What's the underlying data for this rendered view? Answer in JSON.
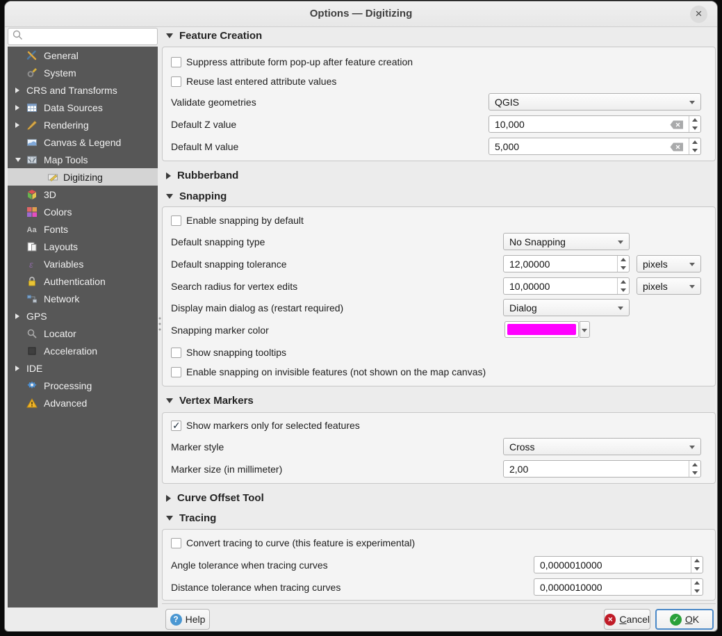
{
  "window": {
    "title": "Options — Digitizing",
    "close_glyph": "×"
  },
  "sidebar": {
    "search_placeholder": "",
    "items": [
      {
        "label": "General",
        "icon": "general-icon",
        "indent": 1
      },
      {
        "label": "System",
        "icon": "system-icon",
        "indent": 1
      },
      {
        "label": "CRS and Transforms",
        "icon": null,
        "indent": 0,
        "arrow": "right"
      },
      {
        "label": "Data Sources",
        "icon": "data-sources-icon",
        "indent": 0,
        "arrow": "right"
      },
      {
        "label": "Rendering",
        "icon": "rendering-icon",
        "indent": 0,
        "arrow": "right"
      },
      {
        "label": "Canvas & Legend",
        "icon": "canvas-legend-icon",
        "indent": 1
      },
      {
        "label": "Map Tools",
        "icon": "map-tools-icon",
        "indent": 0,
        "arrow": "down"
      },
      {
        "label": "Digitizing",
        "icon": "digitizing-icon",
        "indent": 2,
        "selected": true
      },
      {
        "label": "3D",
        "icon": "cube-3d-icon",
        "indent": 1
      },
      {
        "label": "Colors",
        "icon": "colors-icon",
        "indent": 1
      },
      {
        "label": "Fonts",
        "icon": "fonts-icon",
        "indent": 1
      },
      {
        "label": "Layouts",
        "icon": "layouts-icon",
        "indent": 1
      },
      {
        "label": "Variables",
        "icon": "variables-icon",
        "indent": 1
      },
      {
        "label": "Authentication",
        "icon": "authentication-icon",
        "indent": 1
      },
      {
        "label": "Network",
        "icon": "network-icon",
        "indent": 1
      },
      {
        "label": "GPS",
        "icon": null,
        "indent": 0,
        "arrow": "right"
      },
      {
        "label": "Locator",
        "icon": "locator-icon",
        "indent": 1
      },
      {
        "label": "Acceleration",
        "icon": "acceleration-icon",
        "indent": 1
      },
      {
        "label": "IDE",
        "icon": null,
        "indent": 0,
        "arrow": "right"
      },
      {
        "label": "Processing",
        "icon": "processing-icon",
        "indent": 1
      },
      {
        "label": "Advanced",
        "icon": "advanced-icon",
        "indent": 1
      }
    ]
  },
  "sections": {
    "feature_creation": {
      "title": "Feature Creation",
      "suppress_label": "Suppress attribute form pop-up after feature creation",
      "suppress_checked": false,
      "reuse_label": "Reuse last entered attribute values",
      "reuse_checked": false,
      "validate_label": "Validate geometries",
      "validate_value": "QGIS",
      "default_z_label": "Default Z value",
      "default_z_value": "10,000",
      "default_m_label": "Default M value",
      "default_m_value": "5,000"
    },
    "rubberband": {
      "title": "Rubberband"
    },
    "snapping": {
      "title": "Snapping",
      "enable_label": "Enable snapping by default",
      "enable_checked": false,
      "type_label": "Default snapping type",
      "type_value": "No Snapping",
      "tolerance_label": "Default snapping tolerance",
      "tolerance_value": "12,00000",
      "tolerance_unit": "pixels",
      "radius_label": "Search radius for vertex edits",
      "radius_value": "10,00000",
      "radius_unit": "pixels",
      "dialog_label": "Display main dialog as (restart required)",
      "dialog_value": "Dialog",
      "marker_color_label": "Snapping marker color",
      "marker_color": "#ff00ff",
      "tooltips_label": "Show snapping tooltips",
      "tooltips_checked": false,
      "invisible_label": "Enable snapping on invisible features (not shown on the map canvas)",
      "invisible_checked": false
    },
    "vertex_markers": {
      "title": "Vertex Markers",
      "show_markers_label": "Show markers only for selected features",
      "show_markers_checked": true,
      "style_label": "Marker style",
      "style_value": "Cross",
      "size_label": "Marker size (in millimeter)",
      "size_value": "2,00"
    },
    "curve_offset": {
      "title": "Curve Offset Tool"
    },
    "tracing": {
      "title": "Tracing",
      "convert_label": "Convert tracing to curve (this feature is experimental)",
      "convert_checked": false,
      "angle_label": "Angle tolerance when tracing curves",
      "angle_value": "0,0000010000",
      "distance_label": "Distance tolerance when tracing curves",
      "distance_value": "0,0000010000"
    }
  },
  "footer": {
    "help": "Help",
    "cancel": "Cancel",
    "ok": "OK"
  },
  "colors": {
    "snapping_marker": "#ff00ff",
    "sidebar_bg": "#575757",
    "selected_row": "#d4d4d4",
    "help_icon": "#4a97d2",
    "cancel_icon": "#c01c28",
    "ok_icon": "#2aa13a",
    "ok_focus_border": "#4b89c8"
  }
}
